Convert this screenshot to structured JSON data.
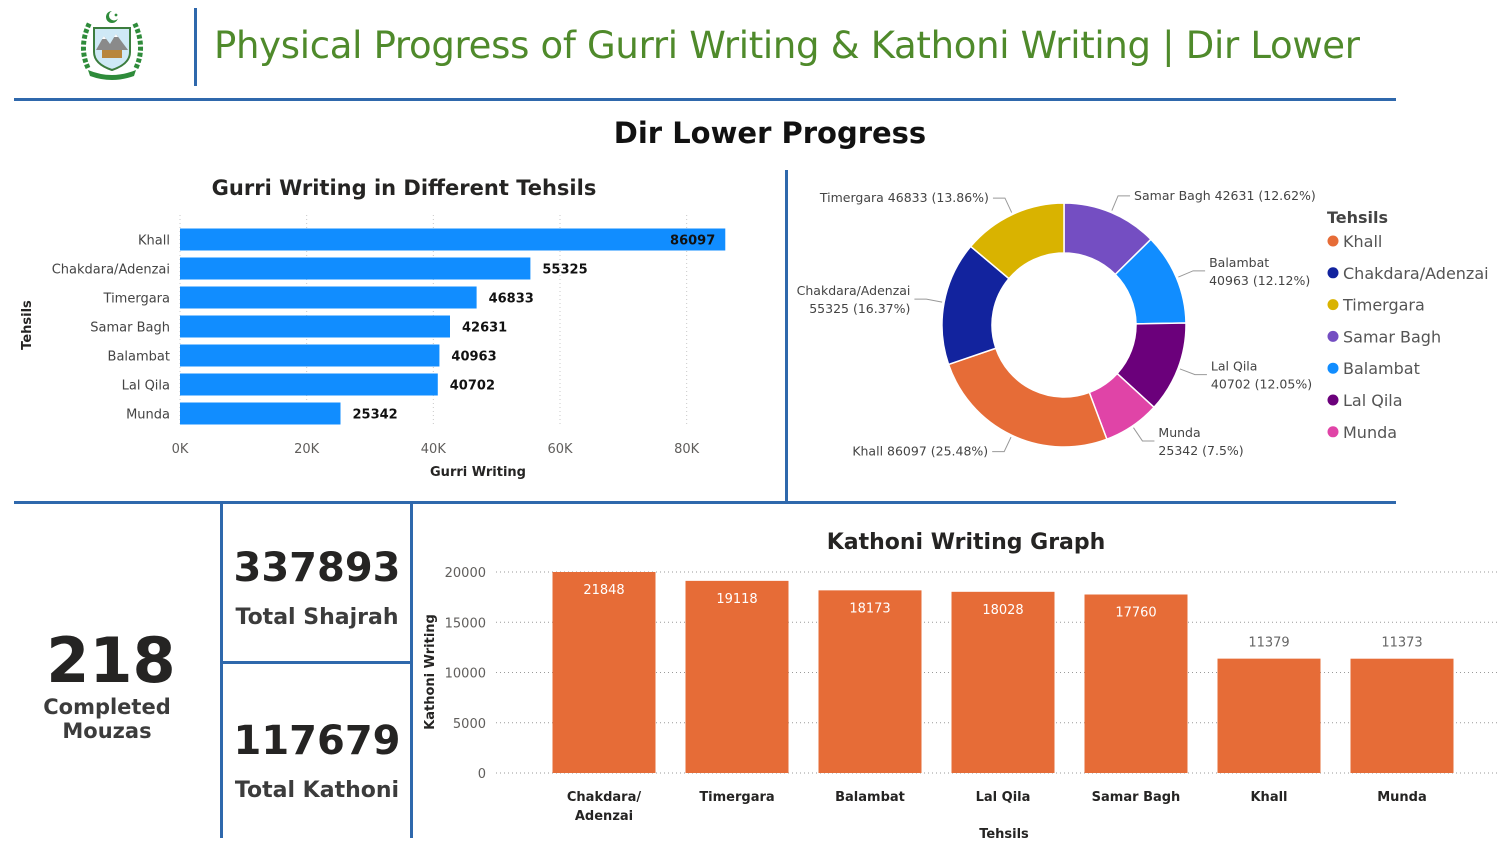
{
  "header": {
    "title": "Physical Progress of Gurri Writing & Kathoni Writing | Dir Lower",
    "logo_icon": "kp-government-emblem-icon"
  },
  "section_title": "Dir Lower Progress",
  "kpis": {
    "completed_mouzas": {
      "value": "218",
      "label": "Completed Mouzas"
    },
    "total_shajrah": {
      "value": "337893",
      "label": "Total Shajrah"
    },
    "total_kathoni": {
      "value": "117679",
      "label": "Total Kathoni"
    }
  },
  "colors": {
    "accent_blue": "#2f68ac",
    "bar_blue": "#118dff",
    "bar_orange": "#e66c37",
    "title_green": "#4f8a2b"
  },
  "chart_data": [
    {
      "id": "gurri",
      "type": "bar",
      "orientation": "horizontal",
      "title": "Gurri Writing in Different Tehsils",
      "xlabel": "Gurri Writing",
      "ylabel": "Tehsils",
      "categories": [
        "Khall",
        "Chakdara/Adenzai",
        "Timergara",
        "Samar Bagh",
        "Balambat",
        "Lal Qila",
        "Munda"
      ],
      "values": [
        86097,
        55325,
        46833,
        42631,
        40963,
        40702,
        25342
      ],
      "xlim": [
        0,
        90000
      ],
      "xticks": [
        {
          "value": 0,
          "label": "0K"
        },
        {
          "value": 20000,
          "label": "20K"
        },
        {
          "value": 40000,
          "label": "40K"
        },
        {
          "value": 60000,
          "label": "60K"
        },
        {
          "value": 80000,
          "label": "80K"
        }
      ],
      "grid": true,
      "color": "#118dff"
    },
    {
      "id": "donut",
      "type": "pie",
      "style": "donut",
      "legend_title": "Tehsils",
      "legend_position": "right",
      "legend_order": [
        "Khall",
        "Chakdara/Adenzai",
        "Timergara",
        "Samar Bagh",
        "Balambat",
        "Lal Qila",
        "Munda"
      ],
      "slices": [
        {
          "name": "Samar Bagh",
          "value": 42631,
          "label": "42631 (12.62%)",
          "color": "#744ec2"
        },
        {
          "name": "Balambat",
          "value": 40963,
          "label": "40963 (12.12%)",
          "color": "#118dff"
        },
        {
          "name": "Lal Qila",
          "value": 40702,
          "label": "40702 (12.05%)",
          "color": "#6b007b"
        },
        {
          "name": "Munda",
          "value": 25342,
          "label": "25342 (7.5%)",
          "color": "#e044a7"
        },
        {
          "name": "Khall",
          "value": 86097,
          "label": "86097 (25.48%)",
          "color": "#e66c37"
        },
        {
          "name": "Chakdara/Adenzai",
          "value": 55325,
          "label": "55325 (16.37%)",
          "color": "#12239e"
        },
        {
          "name": "Timergara",
          "value": 46833,
          "label": "46833 (13.86%)",
          "color": "#d9b300"
        }
      ]
    },
    {
      "id": "kathoni",
      "type": "bar",
      "orientation": "vertical",
      "title": "Kathoni Writing Graph",
      "xlabel": "Tehsils",
      "ylabel": "Kathoni Writing",
      "categories": [
        "Chakdara/ Adenzai",
        "Timergara",
        "Balambat",
        "Lal Qila",
        "Samar Bagh",
        "Khall",
        "Munda"
      ],
      "values": [
        21848,
        19118,
        18173,
        18028,
        17760,
        11379,
        11373
      ],
      "ylim": [
        0,
        20000
      ],
      "yticks": [
        0,
        5000,
        10000,
        15000,
        20000
      ],
      "grid": true,
      "color": "#e66c37"
    }
  ]
}
